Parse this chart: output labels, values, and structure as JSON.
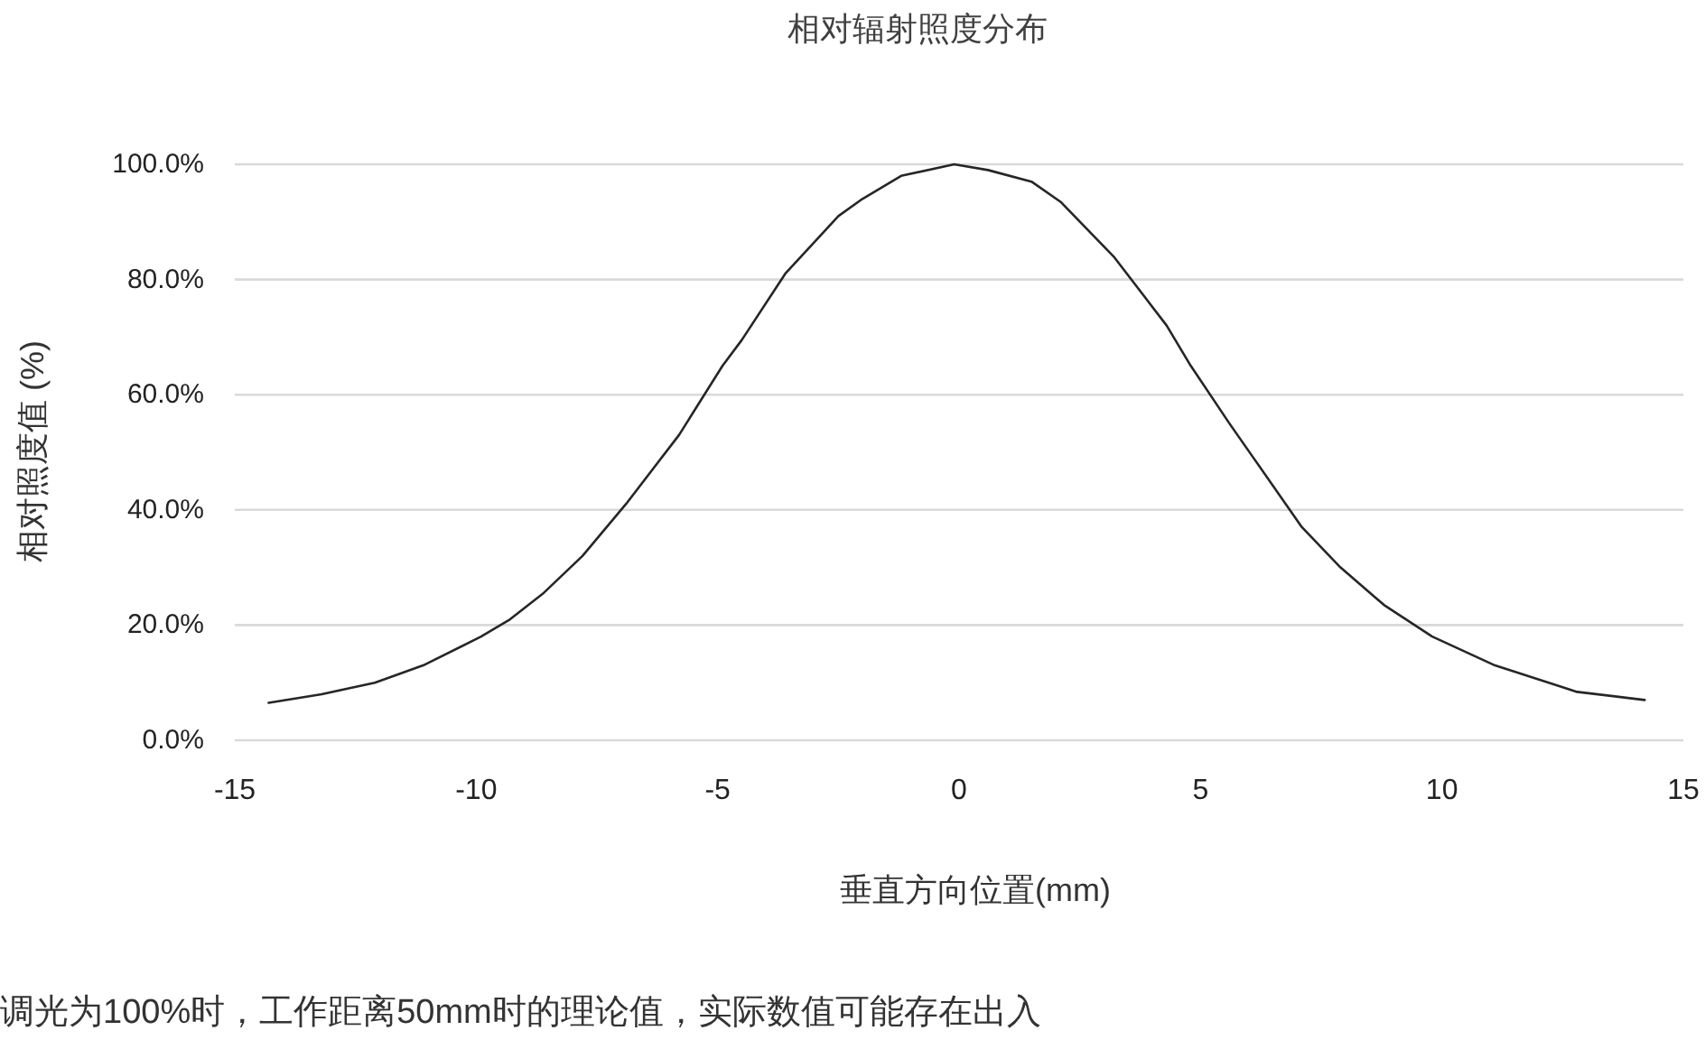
{
  "chart_data": {
    "type": "line",
    "title": "相对辐射照度分布",
    "xlabel": "垂直方向位置(mm)",
    "ylabel": "相对照度值 (%)",
    "annotations": [
      "调光为100%时，工作距离50mm时的理论值，实际数值可能存在出入"
    ],
    "x": [
      -14.3,
      -13.2,
      -12.1,
      -11.1,
      -9.9,
      -9.3,
      -8.6,
      -7.8,
      -6.9,
      -5.8,
      -4.9,
      -4.5,
      -3.6,
      -2.5,
      -2.0,
      -1.2,
      -0.1,
      0.6,
      1.5,
      2.1,
      3.2,
      4.3,
      4.8,
      5.6,
      6.1,
      7.1,
      7.9,
      8.8,
      9.8,
      11.1,
      12.8,
      14.2
    ],
    "series": [
      {
        "color": "#262626",
        "values": [
          6.5,
          8,
          10,
          13,
          18,
          21,
          25.6,
          32,
          41,
          53,
          65,
          69.5,
          81,
          91,
          94,
          98,
          100,
          99,
          97,
          93.5,
          84,
          72,
          65,
          55,
          49,
          37,
          30,
          23.5,
          18,
          13,
          8.4,
          7
        ]
      }
    ],
    "xlim": [
      -15,
      15
    ],
    "xticks": [
      -15,
      -10,
      -5,
      0,
      5,
      10,
      15
    ],
    "ylim": [
      0,
      100
    ],
    "yticks": [
      {
        "value": 0,
        "label": "0.0%"
      },
      {
        "value": 20,
        "label": "20.0%"
      },
      {
        "value": 40,
        "label": "40.0%"
      },
      {
        "value": 60,
        "label": "60.0%"
      },
      {
        "value": 80,
        "label": "80.0%"
      },
      {
        "value": 100,
        "label": "100.0%"
      }
    ],
    "grid": "y",
    "line_style": "solid"
  }
}
